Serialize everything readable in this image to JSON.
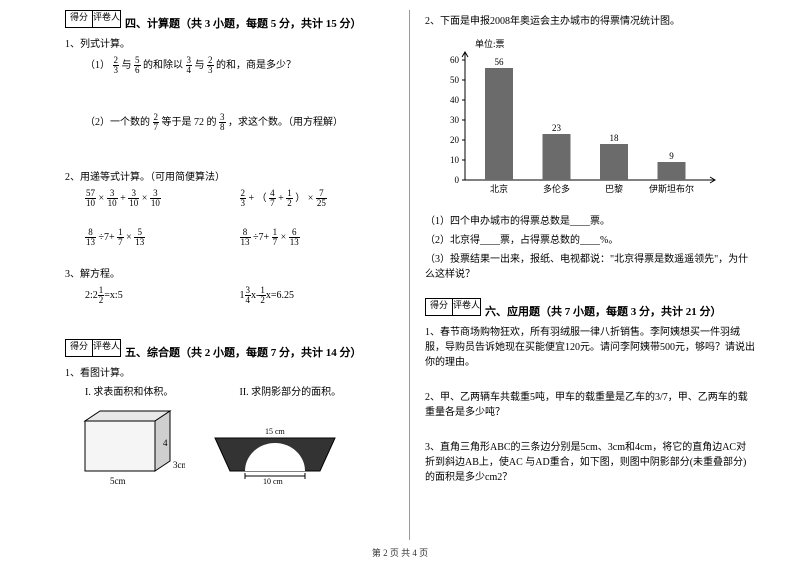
{
  "scorebox": {
    "score": "得分",
    "reviewer": "评卷人"
  },
  "section4": {
    "title": "四、计算题（共 3 小题，每题 5 分，共计 15 分）",
    "q1_lead": "1、列式计算。",
    "q1_1_pre": "（1）",
    "q1_1_mid1": "与",
    "q1_1_mid2": "的和除以",
    "q1_1_mid3": "与",
    "q1_1_mid4": "的和，商是多少？",
    "q1_2_pre": "（2）一个数的",
    "q1_2_mid1": "等于是 72 的",
    "q1_2_tail": "，求这个数。（用方程解）",
    "q2_lead": "2、用递等式计算。（可用简便算法）",
    "q3_lead": "3、解方程。",
    "eq3a": "2:2",
    "eq3a2": "=x:5",
    "eq3b_pre": "1",
    "eq3b_mid": "x-",
    "eq3b_tail": "x=6.25",
    "f_2_3n": "2",
    "f_2_3d": "3",
    "f_5_6n": "5",
    "f_5_6d": "6",
    "f_3_4n": "3",
    "f_3_4d": "4",
    "f_2_7n": "2",
    "f_2_7d": "7",
    "f_3_8n": "3",
    "f_3_8d": "8",
    "f_57_10n": "57",
    "f_57_10d": "10",
    "f_3_10n": "3",
    "f_3_10d": "10",
    "f_4_7n": "4",
    "f_4_7d": "7",
    "f_1_2n": "1",
    "f_1_2d": "2",
    "f_7_25n": "7",
    "f_7_25d": "25",
    "f_8_13n": "8",
    "f_8_13d": "13",
    "f_1_7n": "1",
    "f_1_7d": "7",
    "f_5_13n": "5",
    "f_5_13d": "13",
    "f_6_13n": "6",
    "f_6_13d": "13",
    "f_1_2bn": "1",
    "f_1_2bd": "2",
    "f_3_4bn": "3",
    "f_3_4bd": "4",
    "f_1_2cn": "1",
    "f_1_2cd": "2",
    "op_x": "×",
    "op_p": "+",
    "op_d": "÷",
    "op_lp": "（",
    "op_rp": "）"
  },
  "section5": {
    "title": "五、综合题（共 2 小题，每题 7 分，共计 14 分）",
    "q1_lead": "1、看图计算。",
    "q1a": "I. 求表面积和体积。",
    "q1b": "II. 求阴影部分的面积。",
    "cube": {
      "w": "5cm",
      "h": "3cm",
      "d": "4"
    },
    "arch": {
      "top": "15 cm",
      "bottom": "10 cm"
    }
  },
  "right": {
    "q2_lead": "2、下面是申报2008年奥运会主办城市的得票情况统计图。",
    "chart": {
      "unit": "单位:票",
      "ymax": 60,
      "ystep": 10,
      "categories": [
        "北京",
        "多伦多",
        "巴黎",
        "伊斯坦布尔"
      ],
      "values": [
        56,
        23,
        18,
        9
      ],
      "bar_color": "#6b6b6b",
      "axis_color": "#000000",
      "label_fontsize": 9
    },
    "sub1": "（1）四个申办城市的得票总数是____票。",
    "sub2": "（2）北京得____票，占得票总数的____%。",
    "sub3": "（3）投票结果一出来，报纸、电视都说：\"北京得票是数遥遥领先\"，为什么这样说？"
  },
  "section6": {
    "title": "六、应用题（共 7 小题，每题 3 分，共计 21 分）",
    "q1": "1、春节商场购物狂欢，所有羽绒服一律八折销售。李阿姨想买一件羽绒服，导购员告诉她现在买能便宜120元。请问李阿姨带500元，够吗？请说出你的理由。",
    "q2": "2、甲、乙两辆车共载重5吨，甲车的载重量是乙车的3/7，甲、乙两车的载重量各是多少吨？",
    "q3": "3、直角三角形ABC的三条边分别是5cm、3cm和4cm，将它的直角边AC对折到斜边AB上，使AC 与AD重合，如下图，则图中阴影部分(未重叠部分)的面积是多少cm2？"
  },
  "footer": "第 2 页 共 4 页"
}
